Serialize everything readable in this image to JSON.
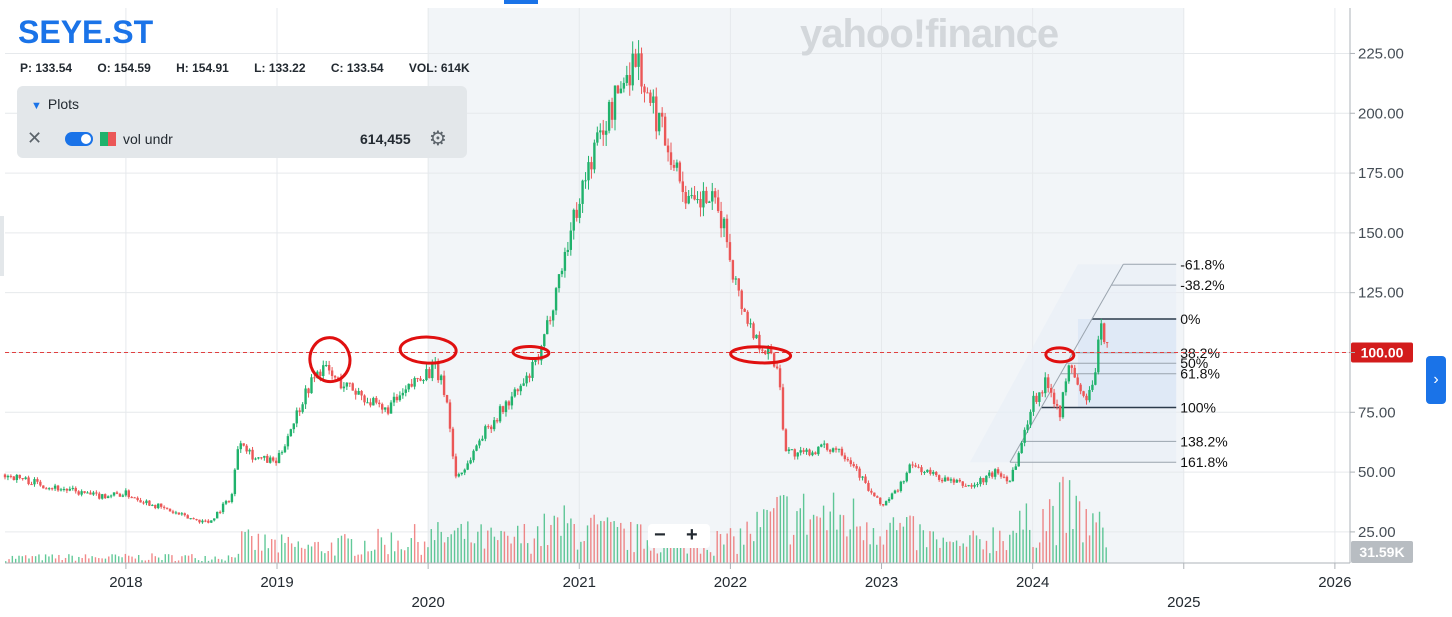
{
  "header": {
    "ticker": "SEYE.ST",
    "ohlc": {
      "p": "P: 133.54",
      "o": "O: 154.59",
      "h": "H: 154.91",
      "l": "L: 133.22",
      "c": "C: 133.54",
      "vol": "VOL: 614K"
    },
    "logo": "yahoo!finance"
  },
  "plots_panel": {
    "title": "Plots",
    "row": {
      "name": "vol undr",
      "value": "614,455"
    }
  },
  "controls": {
    "zoom_out": "−",
    "zoom_in": "+",
    "expand": "›"
  },
  "colors": {
    "up": "#20b26c",
    "down": "#eb5757",
    "accent": "#1a73e8",
    "annotation": "#e01010",
    "price_line": "#e04040"
  },
  "chart_data": {
    "type": "candlestick",
    "x_range": [
      2017.2,
      2026.1
    ],
    "y_range": [
      12,
      244
    ],
    "x_ticks": [
      {
        "x": 2018,
        "label": "2018"
      },
      {
        "x": 2019,
        "label": "2019"
      },
      {
        "x": 2020,
        "label": "2020"
      },
      {
        "x": 2021,
        "label": "2021"
      },
      {
        "x": 2022,
        "label": "2022"
      },
      {
        "x": 2023,
        "label": "2023"
      },
      {
        "x": 2024,
        "label": "2024"
      },
      {
        "x": 2025,
        "label": "2025"
      },
      {
        "x": 2026,
        "label": "2026"
      }
    ],
    "y_ticks": [
      {
        "y": 25,
        "label": "25.00"
      },
      {
        "y": 50,
        "label": "50.00"
      },
      {
        "y": 75,
        "label": "75.00"
      },
      {
        "y": 100,
        "label": "100.00"
      },
      {
        "y": 125,
        "label": "125.00"
      },
      {
        "y": 150,
        "label": "150.00"
      },
      {
        "y": 175,
        "label": "175.00"
      },
      {
        "y": 200,
        "label": "200.00"
      },
      {
        "y": 225,
        "label": "225.00"
      }
    ],
    "shaded_range": [
      2020.0,
      2025.0
    ],
    "price_path": [
      [
        2017.2,
        49
      ],
      [
        2017.5,
        44
      ],
      [
        2017.8,
        40
      ],
      [
        2018.0,
        41
      ],
      [
        2018.2,
        36
      ],
      [
        2018.4,
        31
      ],
      [
        2018.55,
        29
      ],
      [
        2018.7,
        40
      ],
      [
        2018.75,
        65
      ],
      [
        2018.85,
        56
      ],
      [
        2019.0,
        54
      ],
      [
        2019.1,
        70
      ],
      [
        2019.2,
        85
      ],
      [
        2019.3,
        94
      ],
      [
        2019.4,
        88
      ],
      [
        2019.55,
        83
      ],
      [
        2019.7,
        75
      ],
      [
        2019.85,
        83
      ],
      [
        2019.95,
        91
      ],
      [
        2020.05,
        93
      ],
      [
        2020.12,
        82
      ],
      [
        2020.18,
        48
      ],
      [
        2020.25,
        52
      ],
      [
        2020.35,
        65
      ],
      [
        2020.5,
        77
      ],
      [
        2020.65,
        88
      ],
      [
        2020.75,
        100
      ],
      [
        2020.82,
        120
      ],
      [
        2020.9,
        140
      ],
      [
        2021.0,
        165
      ],
      [
        2021.1,
        185
      ],
      [
        2021.2,
        200
      ],
      [
        2021.3,
        215
      ],
      [
        2021.38,
        225
      ],
      [
        2021.45,
        205
      ],
      [
        2021.55,
        195
      ],
      [
        2021.65,
        175
      ],
      [
        2021.75,
        160
      ],
      [
        2021.85,
        165
      ],
      [
        2021.95,
        155
      ],
      [
        2022.05,
        125
      ],
      [
        2022.15,
        108
      ],
      [
        2022.25,
        100
      ],
      [
        2022.32,
        93
      ],
      [
        2022.36,
        60
      ],
      [
        2022.45,
        57
      ],
      [
        2022.6,
        60
      ],
      [
        2022.72,
        60
      ],
      [
        2022.82,
        53
      ],
      [
        2022.92,
        42
      ],
      [
        2023.0,
        36
      ],
      [
        2023.1,
        42
      ],
      [
        2023.2,
        53
      ],
      [
        2023.3,
        50
      ],
      [
        2023.45,
        46
      ],
      [
        2023.6,
        44
      ],
      [
        2023.75,
        50
      ],
      [
        2023.85,
        47
      ],
      [
        2023.92,
        60
      ],
      [
        2024.0,
        80
      ],
      [
        2024.1,
        88
      ],
      [
        2024.18,
        75
      ],
      [
        2024.25,
        96
      ],
      [
        2024.33,
        80
      ],
      [
        2024.4,
        85
      ],
      [
        2024.45,
        110
      ],
      [
        2024.5,
        105
      ]
    ],
    "volume_path": [
      [
        2017.2,
        0.9
      ],
      [
        2018.7,
        1.0
      ],
      [
        2018.75,
        3.5
      ],
      [
        2019.2,
        2.5
      ],
      [
        2020.2,
        4.5
      ],
      [
        2020.5,
        3.5
      ],
      [
        2020.9,
        6.0
      ],
      [
        2021.4,
        4.0
      ],
      [
        2022.0,
        3.5
      ],
      [
        2022.35,
        8.0
      ],
      [
        2022.9,
        7.0
      ],
      [
        2023.5,
        2.5
      ],
      [
        2023.95,
        6.0
      ],
      [
        2024.2,
        9.0
      ],
      [
        2024.5,
        4.5
      ]
    ],
    "volume_badge": "31.59K",
    "price_level": {
      "value": 100,
      "label": "100.00"
    },
    "fibonacci": {
      "base": 77,
      "top": 114,
      "x_start": 2023.85,
      "x_end": 2024.95,
      "levels": [
        {
          "pct": -0.618,
          "label": "-61.8%"
        },
        {
          "pct": -0.382,
          "label": "-38.2%"
        },
        {
          "pct": 0.0,
          "label": "0%"
        },
        {
          "pct": 0.382,
          "label": "38.2%"
        },
        {
          "pct": 0.5,
          "label": "50%"
        },
        {
          "pct": 0.618,
          "label": "61.8%"
        },
        {
          "pct": 1.0,
          "label": "100%"
        },
        {
          "pct": 1.382,
          "label": "138.2%"
        },
        {
          "pct": 1.618,
          "label": "161.8%"
        }
      ]
    },
    "annotations": [
      {
        "type": "circle",
        "x": 2019.35,
        "y": 97
      },
      {
        "type": "circle",
        "x": 2020.0,
        "y": 101
      },
      {
        "type": "circle",
        "x": 2020.68,
        "y": 100
      },
      {
        "type": "circle",
        "x": 2022.2,
        "y": 99
      },
      {
        "type": "circle",
        "x": 2024.18,
        "y": 99
      }
    ]
  }
}
